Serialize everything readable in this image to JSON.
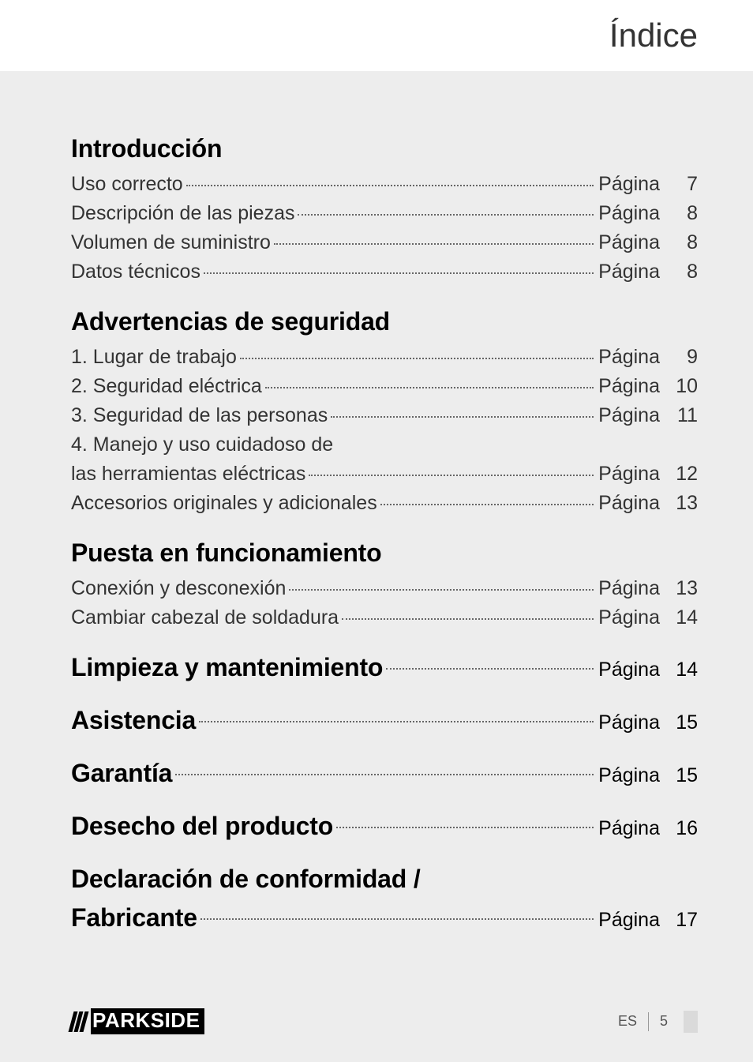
{
  "header": {
    "title": "Índice"
  },
  "colors": {
    "page_bg": "#ededed",
    "header_bg": "#ffffff",
    "text": "#333333",
    "heading": "#000000",
    "dots": "#666666",
    "logo_bg": "#000000",
    "logo_text": "#ffffff"
  },
  "typography": {
    "header_title_size": 42,
    "section_heading_size": 32,
    "toc_line_size": 25,
    "footer_size": 18
  },
  "pagina_label": "Página",
  "toc": {
    "sections": [
      {
        "heading": "Introducción",
        "items": [
          {
            "label": "Uso correcto",
            "page": "7"
          },
          {
            "label": "Descripción de las piezas",
            "page": "8"
          },
          {
            "label": "Volumen de suministro",
            "page": "8"
          },
          {
            "label": "Datos técnicos",
            "page": "8"
          }
        ]
      },
      {
        "heading": "Advertencias de seguridad",
        "items": [
          {
            "label": "1. Lugar de trabajo",
            "page": "9"
          },
          {
            "label": "2. Seguridad eléctrica",
            "page": "10"
          },
          {
            "label": "3. Seguridad de las personas",
            "page": "11"
          },
          {
            "label": "4. Manejo y uso cuidadoso de",
            "page": null
          },
          {
            "label": "las herramientas eléctricas",
            "page": "12"
          },
          {
            "label": "Accesorios originales y adicionales",
            "page": "13"
          }
        ]
      },
      {
        "heading": "Puesta en funcionamiento",
        "items": [
          {
            "label": "Conexión y desconexión",
            "page": "13"
          },
          {
            "label": "Cambiar cabezal de soldadura",
            "page": "14"
          }
        ]
      }
    ],
    "standalone": [
      {
        "heading": "Limpieza y mantenimiento",
        "page": "14"
      },
      {
        "heading": "Asistencia",
        "page": "15"
      },
      {
        "heading": "Garantía",
        "page": "15"
      },
      {
        "heading": "Desecho del producto",
        "page": "16"
      }
    ],
    "final": {
      "heading_line1": "Declaración de conformidad /",
      "heading_line2": "Fabricante",
      "page": "17"
    }
  },
  "footer": {
    "logo": "PARKSIDE",
    "lang": "ES",
    "pagenum": "5"
  }
}
